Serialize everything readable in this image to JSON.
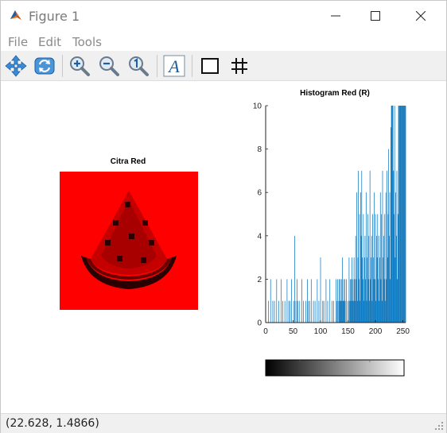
{
  "window": {
    "title": "Figure 1",
    "controls": [
      "minimize",
      "maximize",
      "close"
    ]
  },
  "menu": {
    "file": "File",
    "edit": "Edit",
    "tools": "Tools"
  },
  "toolbar": {
    "tools": [
      "pan-icon",
      "rotate-icon",
      "zoom-in-icon",
      "zoom-out-icon",
      "zoom-reset-icon",
      "insert-text-icon",
      "rectangle-icon",
      "grid-icon"
    ]
  },
  "figure": {
    "image_axes": {
      "title": "Citra Red",
      "background_color": "#ff0000"
    },
    "colorbar": {
      "colormap": "gray"
    }
  },
  "chart_data": {
    "type": "bar",
    "title": "Histogram Red (R)",
    "xlabel": "",
    "ylabel": "",
    "xlim": [
      0,
      255
    ],
    "ylim": [
      0,
      10
    ],
    "xticks": [
      0,
      50,
      100,
      150,
      200,
      250
    ],
    "yticks": [
      0,
      2,
      4,
      6,
      8,
      10
    ],
    "color": "#0072bd",
    "series": [
      {
        "x": [
          0,
          5,
          9,
          13,
          16,
          20,
          24,
          28,
          31,
          35,
          39,
          42,
          44,
          47,
          51,
          53,
          55,
          57,
          59,
          62,
          66,
          69,
          73,
          76,
          78,
          80,
          83,
          87,
          90,
          94,
          97,
          100,
          104,
          106,
          110,
          113,
          117,
          121,
          124,
          128,
          130,
          131,
          133,
          134,
          135,
          136,
          137,
          138,
          139,
          140,
          141,
          142,
          143,
          144,
          145,
          147,
          150,
          152,
          153,
          154,
          155,
          156,
          157,
          158,
          159,
          160,
          161,
          162,
          163,
          164,
          165,
          166,
          167,
          168,
          169,
          170,
          171,
          172,
          173,
          174,
          175,
          176,
          177,
          178,
          179,
          180,
          181,
          182,
          183,
          184,
          185,
          186,
          187,
          188,
          189,
          190,
          191,
          192,
          193,
          194,
          195,
          196,
          197,
          198,
          199,
          200,
          201,
          202,
          203,
          204,
          205,
          206,
          207,
          208,
          209,
          210,
          211,
          212,
          213,
          214,
          215,
          216,
          217,
          218,
          219,
          220,
          221,
          222,
          223,
          224,
          225,
          226,
          227,
          228,
          229,
          230,
          231,
          232,
          233,
          234,
          235,
          236,
          237,
          238,
          239,
          240,
          241,
          242,
          243,
          244,
          245,
          246,
          247,
          248,
          249,
          250,
          251,
          252,
          253,
          254,
          255
        ],
        "values": [
          1,
          1,
          2,
          1,
          1,
          2,
          1,
          2,
          1,
          1,
          2,
          1,
          1,
          2,
          1,
          4,
          1,
          2,
          1,
          1,
          2,
          1,
          1,
          2,
          1,
          1,
          2,
          1,
          1,
          2,
          1,
          3,
          1,
          1,
          2,
          1,
          2,
          1,
          1,
          2,
          1,
          2,
          1,
          2,
          1,
          2,
          1,
          2,
          1,
          3,
          1,
          2,
          1,
          2,
          1,
          2,
          1,
          3,
          1,
          2,
          1,
          2,
          3,
          1,
          2,
          1,
          3,
          2,
          1,
          4,
          2,
          6,
          1,
          3,
          7,
          2,
          5,
          1,
          6,
          4,
          7,
          3,
          2,
          5,
          1,
          3,
          4,
          2,
          6,
          1,
          3,
          5,
          2,
          4,
          1,
          7,
          2,
          3,
          4,
          1,
          5,
          3,
          2,
          6,
          2,
          5,
          1,
          4,
          3,
          5,
          2,
          4,
          1,
          3,
          6,
          2,
          5,
          1,
          7,
          3,
          4,
          2,
          5,
          1,
          6,
          2,
          7,
          3,
          5,
          8,
          4,
          6,
          2,
          9,
          10,
          10,
          10,
          10,
          7,
          5,
          10,
          3,
          6,
          4,
          7,
          2,
          5,
          10,
          10,
          10,
          10,
          10,
          10,
          10,
          10,
          10,
          10,
          10,
          10,
          10,
          10
        ]
      }
    ]
  },
  "status": {
    "coordinates": "(22.628, 1.4866)"
  }
}
